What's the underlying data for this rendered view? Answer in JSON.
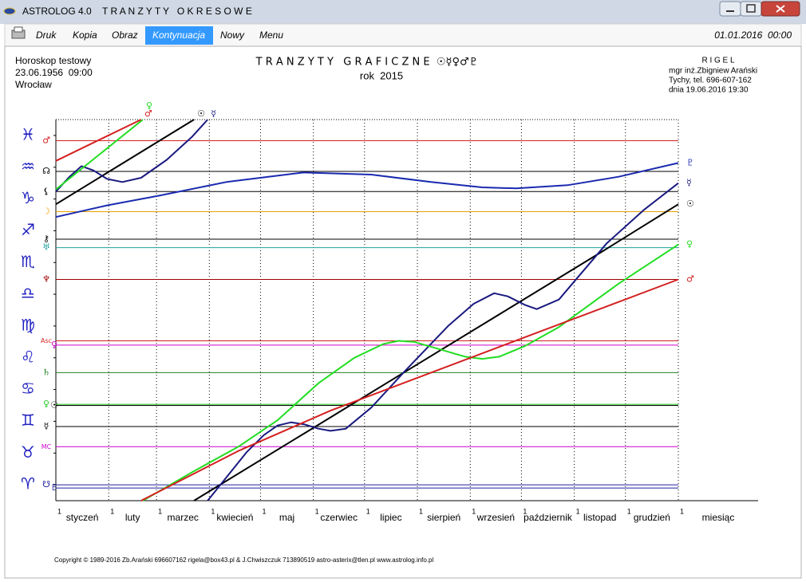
{
  "window": {
    "app": "ASTROLOG 4.0",
    "title": "T R A N Z Y T Y   O K R E S O W E"
  },
  "menu": {
    "items": [
      "Druk",
      "Kopia",
      "Obraz",
      "Kontynuacja",
      "Nowy",
      "Menu"
    ],
    "active": 3,
    "datetime": "01.01.2016  00:00"
  },
  "header": {
    "left": [
      "Horoskop testowy",
      "23.06.1956  09:00",
      "Wrocław"
    ],
    "right": [
      "R I G E L",
      "mgr inż.Zbigniew Arański",
      "Tychy, tel. 696-607-162",
      "dnia 19.06.2016 19:30"
    ]
  },
  "chart_data": {
    "type": "line",
    "title": "T R A N Z Y T Y   G R A F I C Z N E  ☉☿♀♂♇",
    "subtitle": "rok  2015",
    "xlabel": "miesiąc",
    "categories": [
      "styczeń",
      "luty",
      "marzec",
      "kwiecień",
      "maj",
      "czerwiec",
      "lipiec",
      "sierpień",
      "wrzesień",
      "październik",
      "listopad",
      "grudzień"
    ],
    "xlim": [
      0,
      365
    ],
    "xticks": [
      {
        "value": 0,
        "label": "1"
      },
      {
        "value": 31,
        "label": "1"
      },
      {
        "value": 59,
        "label": "1"
      },
      {
        "value": 90,
        "label": "1"
      },
      {
        "value": 120,
        "label": "1"
      },
      {
        "value": 151,
        "label": "1"
      },
      {
        "value": 181,
        "label": "1"
      },
      {
        "value": 212,
        "label": "1"
      },
      {
        "value": 243,
        "label": "1"
      },
      {
        "value": 273,
        "label": "1"
      },
      {
        "value": 304,
        "label": "1"
      },
      {
        "value": 334,
        "label": "1"
      },
      {
        "value": 365,
        "label": "1"
      }
    ],
    "ylim": [
      0,
      360
    ],
    "yticks": [
      {
        "value": 15,
        "label": "♈"
      },
      {
        "value": 45,
        "label": "♉"
      },
      {
        "value": 75,
        "label": "♊"
      },
      {
        "value": 105,
        "label": "♋"
      },
      {
        "value": 135,
        "label": "♌"
      },
      {
        "value": 165,
        "label": "♍"
      },
      {
        "value": 195,
        "label": "♎"
      },
      {
        "value": 225,
        "label": "♏"
      },
      {
        "value": 255,
        "label": "♐"
      },
      {
        "value": 285,
        "label": "♑"
      },
      {
        "value": 315,
        "label": "♒"
      },
      {
        "value": 345,
        "label": "♓"
      }
    ],
    "grid": true,
    "natal_points": [
      {
        "label": "♂",
        "color": "#d42020",
        "value": 340
      },
      {
        "label": "☊",
        "color": "#000000",
        "value": 311
      },
      {
        "label": "⚸",
        "color": "#000000",
        "value": 292
      },
      {
        "label": "☽",
        "color": "#e8a000",
        "value": 273
      },
      {
        "label": "⚷",
        "color": "#000000",
        "value": 247
      },
      {
        "label": "♅",
        "color": "#20a0a0",
        "value": 239
      },
      {
        "label": "♆",
        "color": "#a00000",
        "value": 209
      },
      {
        "label": "Asc",
        "color": "#d42020",
        "value": 151
      },
      {
        "label": "♀",
        "color": "#cc00cc",
        "value": 147
      },
      {
        "label": "♄",
        "color": "#208020",
        "value": 121
      },
      {
        "label": "♀",
        "color": "#22cc22",
        "value": 91
      },
      {
        "label": "☉",
        "color": "#000000",
        "value": 90
      },
      {
        "label": "☿",
        "color": "#000000",
        "value": 70
      },
      {
        "label": "MC",
        "color": "#cc00cc",
        "value": 51
      },
      {
        "label": "☋",
        "color": "#2020a0",
        "value": 15
      },
      {
        "label": "♇",
        "color": "#2020a0",
        "value": 12
      }
    ],
    "series": [
      {
        "name": "☉",
        "color": "#000000",
        "x": [
          0,
          81,
          null,
          81,
          141,
          201,
          261,
          321,
          365
        ],
        "values": [
          280,
          360,
          null,
          0,
          59,
          118,
          177,
          236,
          280
        ]
      },
      {
        "name": "☿",
        "color": "#1a1a80",
        "x": [
          0,
          8,
          15,
          22,
          30,
          39,
          50,
          65,
          80,
          89,
          null,
          89,
          100,
          112,
          122,
          130,
          138,
          146,
          154,
          161,
          170,
          185,
          205,
          230,
          245,
          257,
          265,
          275,
          282,
          295,
          323,
          345,
          365
        ],
        "values": [
          292,
          306,
          316,
          312,
          304,
          301,
          305,
          322,
          344,
          360,
          null,
          0,
          22,
          46,
          62,
          71,
          74,
          72,
          68,
          66,
          68,
          88,
          123,
          165,
          186,
          196,
          193,
          185,
          181,
          190,
          243,
          275,
          300
        ]
      },
      {
        "name": "♀",
        "color": "#22dd22",
        "x": [
          0,
          51,
          null,
          51,
          80,
          107,
          130,
          154,
          175,
          192,
          201,
          210,
          225,
          240,
          250,
          260,
          275,
          295,
          330,
          365
        ],
        "values": [
          294,
          360,
          null,
          0,
          27,
          51,
          76,
          111,
          135,
          148,
          151,
          150,
          143,
          136,
          134,
          136,
          146,
          164,
          205,
          242
        ]
      },
      {
        "name": "♂",
        "color": "#d42020",
        "x": [
          0,
          50,
          null,
          50,
          107,
          161,
          248,
          365
        ],
        "values": [
          321,
          360,
          null,
          0,
          47,
          85,
          138,
          209
        ]
      },
      {
        "name": "♇",
        "color": "#1a2ab0",
        "x": [
          0,
          30,
          60,
          100,
          145,
          185,
          220,
          250,
          270,
          300,
          330,
          365
        ],
        "values": [
          268,
          279,
          288,
          301,
          310,
          308,
          301,
          296,
          295,
          298,
          306,
          319
        ]
      }
    ]
  },
  "footer": "Copyright © 1989-2016 Zb.Arański 696607162 rigela@box43.pl & J.Chwiszczuk 713890519 astro-asterix@tlen.pl www.astrolog.info.pl"
}
